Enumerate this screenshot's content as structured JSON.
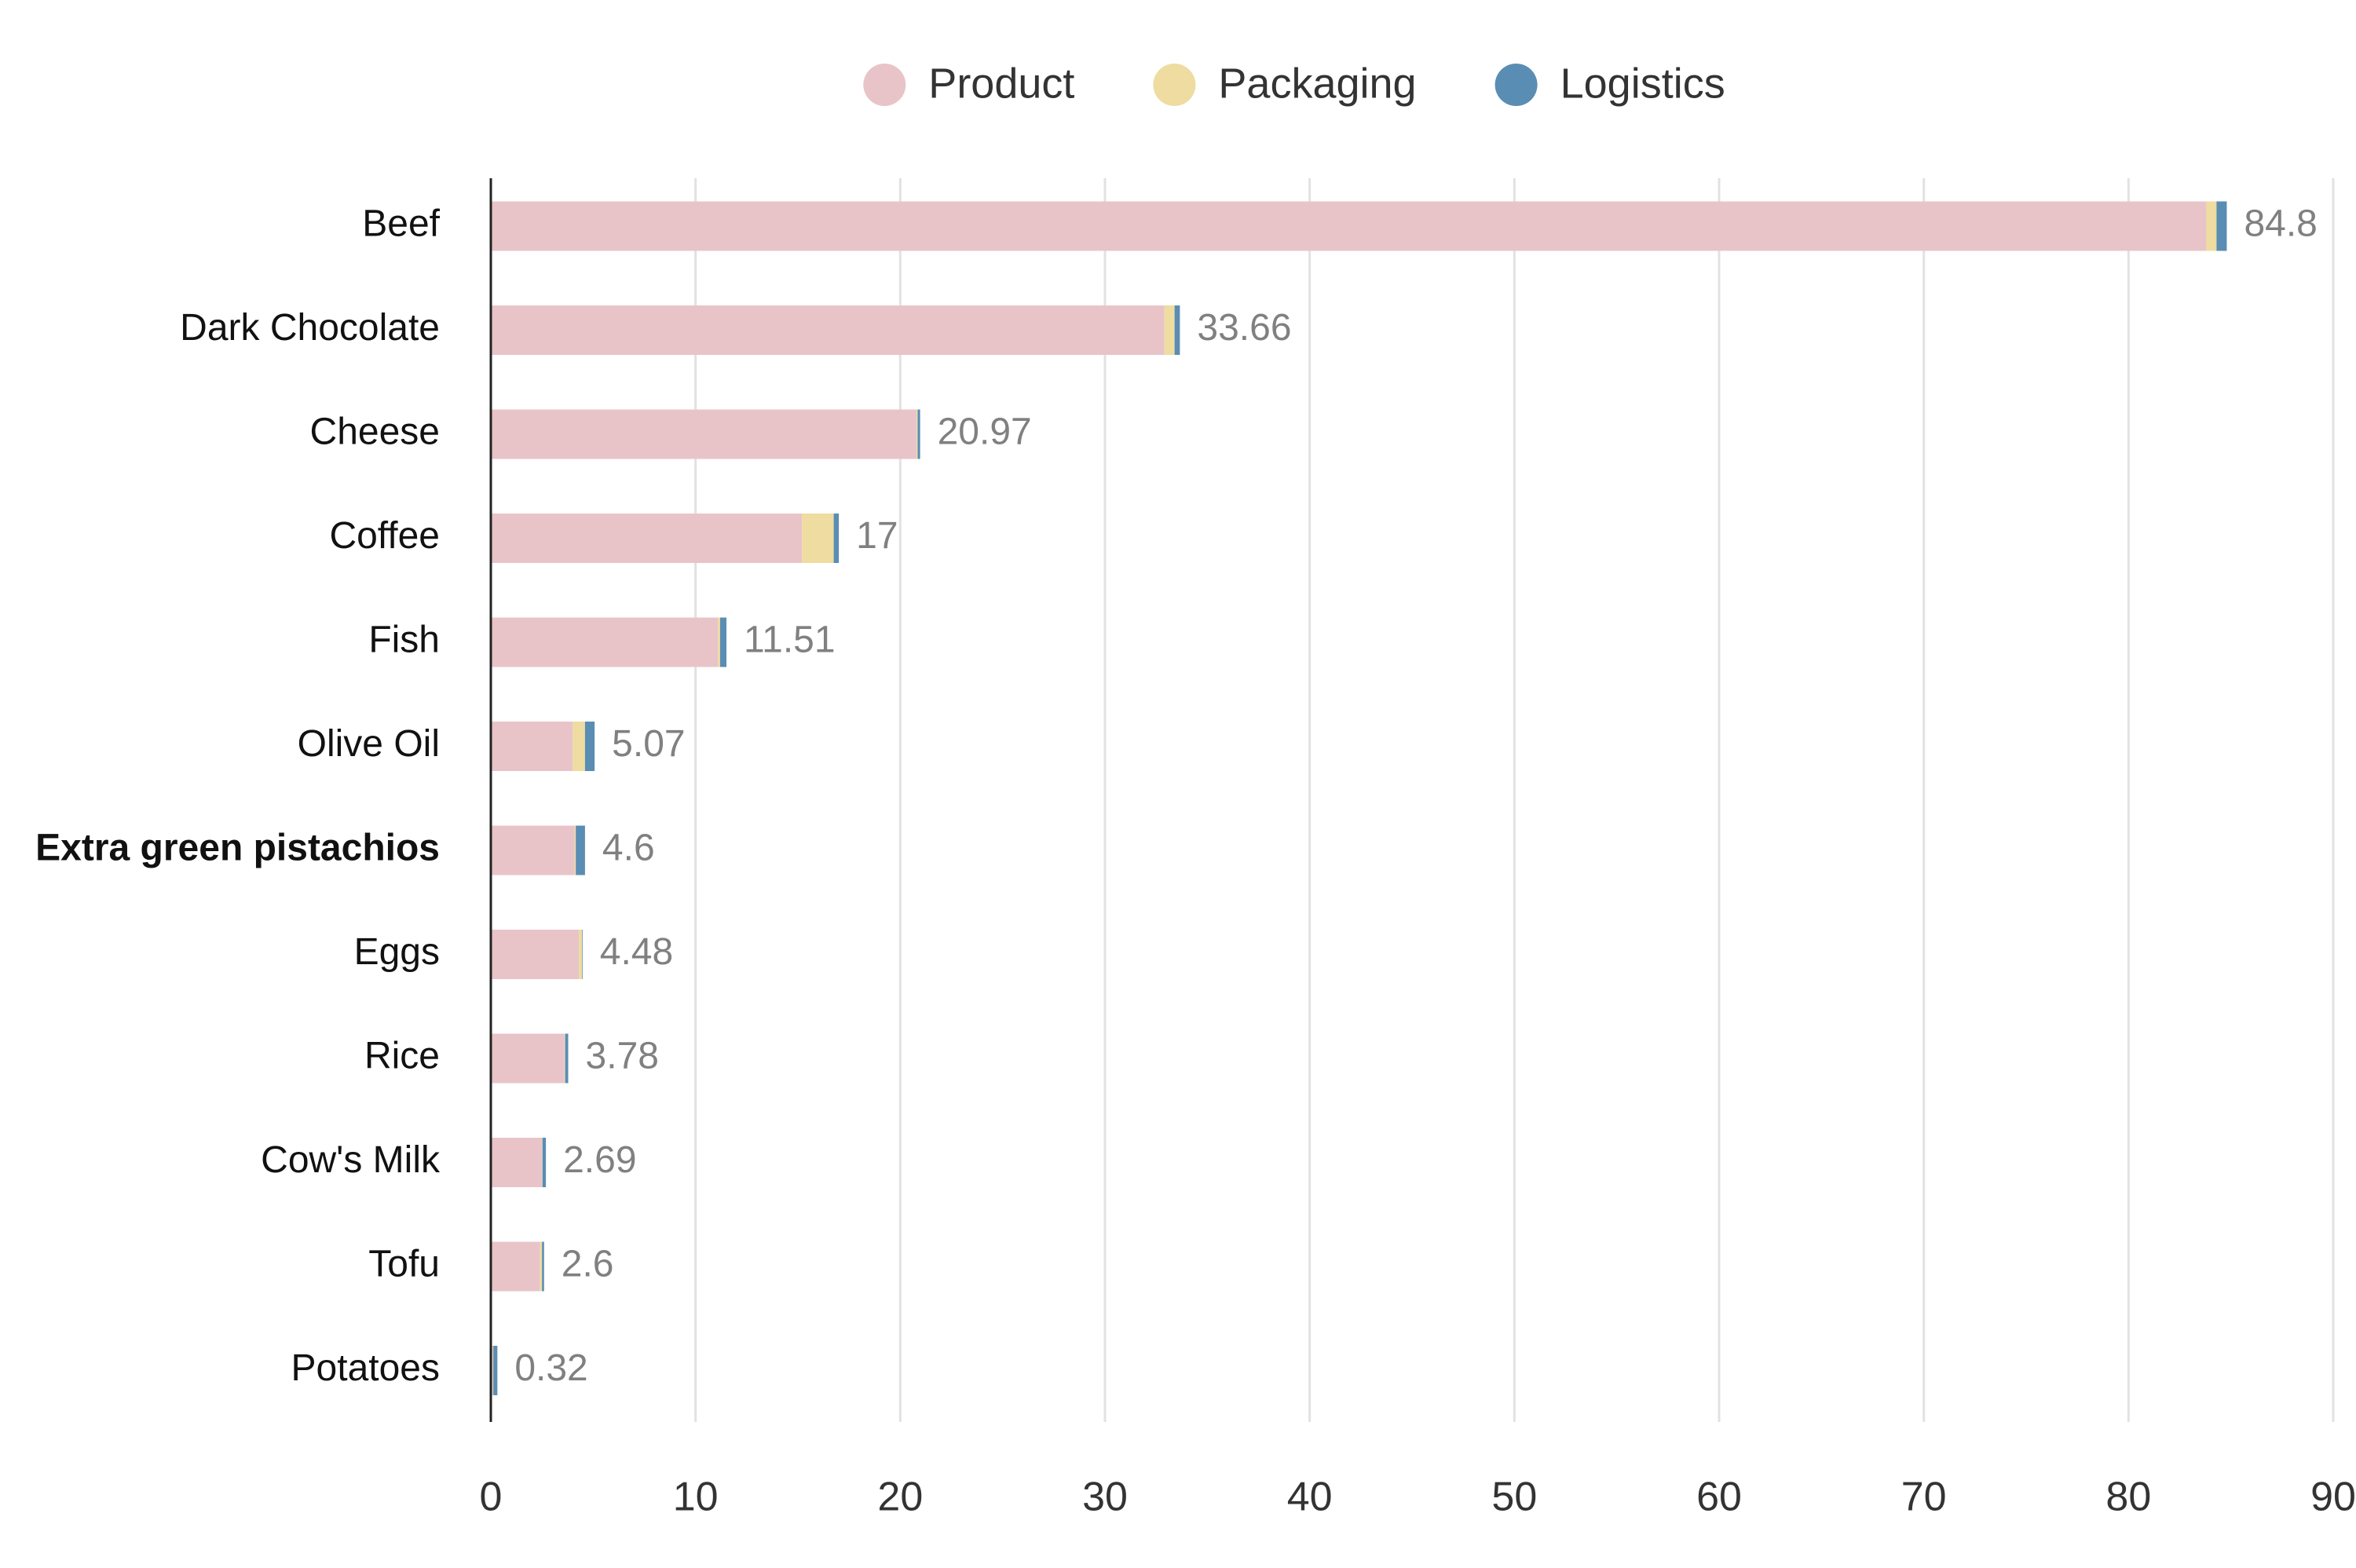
{
  "chart_data": {
    "type": "stacked-bar-horizontal",
    "categories": [
      "Beef",
      "Dark Chocolate",
      "Cheese",
      "Coffee",
      "Fish",
      "Olive Oil",
      "Extra green pistachios",
      "Eggs",
      "Rice",
      "Cow's Milk",
      "Tofu",
      "Potatoes"
    ],
    "highlight_category": "Extra green pistachios",
    "series": [
      {
        "name": "Product",
        "color": "#e8c4c8",
        "values": [
          83.8,
          32.9,
          20.8,
          15.2,
          11.1,
          4.0,
          4.1,
          4.3,
          3.6,
          2.5,
          2.4,
          0.1
        ]
      },
      {
        "name": "Packaging",
        "color": "#eedca0",
        "values": [
          0.5,
          0.5,
          0.05,
          1.55,
          0.1,
          0.6,
          0.05,
          0.15,
          0.03,
          0.02,
          0.1,
          0.02
        ]
      },
      {
        "name": "Logistics",
        "color": "#5a8db3",
        "values": [
          0.5,
          0.26,
          0.12,
          0.25,
          0.31,
          0.47,
          0.45,
          0.03,
          0.15,
          0.17,
          0.1,
          0.2
        ]
      }
    ],
    "totals": [
      84.8,
      33.66,
      20.97,
      17,
      11.51,
      5.07,
      4.6,
      4.48,
      3.78,
      2.69,
      2.6,
      0.32
    ],
    "xlim": [
      0,
      90
    ],
    "xticks": [
      0,
      10,
      20,
      30,
      40,
      50,
      60,
      70,
      80,
      90
    ],
    "grid": true,
    "legend": "top"
  }
}
